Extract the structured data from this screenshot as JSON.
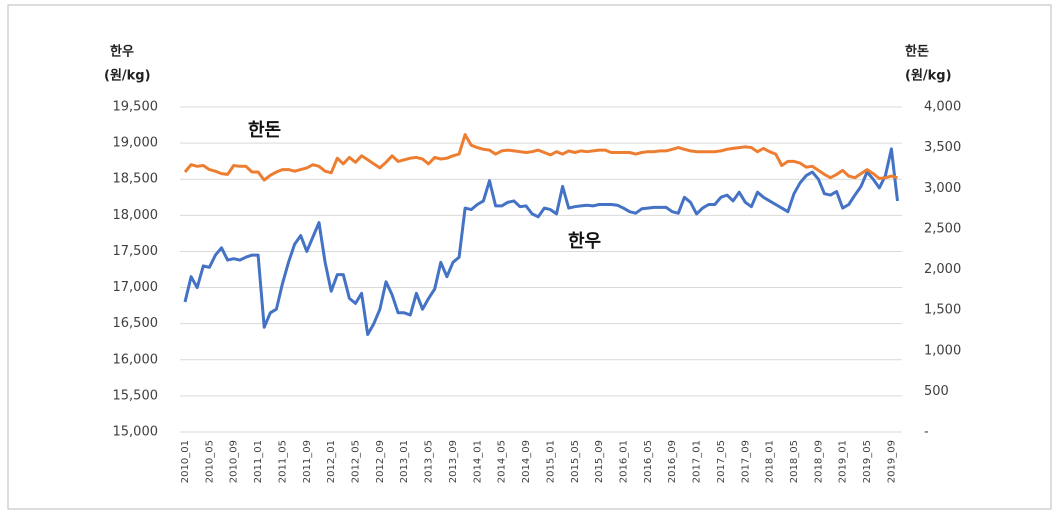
{
  "chart_data": {
    "type": "line",
    "y_label": "한우",
    "y_unit": "(원/kg)",
    "y2_label": "한돈",
    "y2_unit": "(원/kg)",
    "annotations": [
      "한돈",
      "한우"
    ],
    "categories": [
      "2010_01",
      null,
      null,
      null,
      "2010_05",
      null,
      null,
      null,
      "2010_09",
      null,
      null,
      null,
      "2011_01",
      null,
      null,
      null,
      "2011_05",
      null,
      null,
      null,
      "2011_09",
      null,
      null,
      null,
      "2012_01",
      null,
      null,
      null,
      "2012_05",
      null,
      null,
      null,
      "2012_09",
      null,
      null,
      null,
      "2013_01",
      null,
      null,
      null,
      "2013_05",
      null,
      null,
      null,
      "2013_09",
      null,
      null,
      null,
      "2014_01",
      null,
      null,
      null,
      "2014_05",
      null,
      null,
      null,
      "2014_09",
      null,
      null,
      null,
      "2015_01",
      null,
      null,
      null,
      "2015_05",
      null,
      null,
      null,
      "2015_09",
      null,
      null,
      null,
      "2016_01",
      null,
      null,
      null,
      "2016_05",
      null,
      null,
      null,
      "2016_09",
      null,
      null,
      null,
      "2017_01",
      null,
      null,
      null,
      "2017_05",
      null,
      null,
      null,
      "2017_09",
      null,
      null,
      null,
      "2018_01",
      null,
      null,
      null,
      "2018_05",
      null,
      null,
      null,
      "2018_09",
      null,
      null,
      null,
      "2019_01",
      null,
      null,
      null,
      "2019_05",
      null,
      null,
      null,
      "2019_09",
      null
    ],
    "series": [
      {
        "name": "한우",
        "color": "#4472c4",
        "axis": "y",
        "values": [
          16800,
          17150,
          17000,
          17300,
          17280,
          17450,
          17550,
          17380,
          17400,
          17380,
          17420,
          17450,
          17450,
          16450,
          16650,
          16700,
          17050,
          17350,
          17600,
          17720,
          17500,
          17700,
          17900,
          17350,
          16950,
          17180,
          17180,
          16850,
          16780,
          16920,
          16350,
          16500,
          16700,
          17080,
          16900,
          16650,
          16650,
          16620,
          16920,
          16700,
          16850,
          16980,
          17350,
          17150,
          17350,
          17420,
          18100,
          18080,
          18150,
          18200,
          18480,
          18130,
          18130,
          18180,
          18200,
          18120,
          18130,
          18020,
          17980,
          18100,
          18080,
          18020,
          18400,
          18100,
          18120,
          18130,
          18140,
          18130,
          18150,
          18150,
          18150,
          18140,
          18100,
          18050,
          18030,
          18090,
          18100,
          18110,
          18110,
          18110,
          18050,
          18030,
          18250,
          18180,
          18020,
          18100,
          18150,
          18150,
          18250,
          18280,
          18200,
          18320,
          18180,
          18120,
          18320,
          18250,
          18200,
          18150,
          18100,
          18050,
          18300,
          18450,
          18550,
          18600,
          18500,
          18300,
          18280,
          18330,
          18100,
          18150,
          18280,
          18400,
          18600,
          18500,
          18380,
          18550,
          18920,
          18200
        ]
      },
      {
        "name": "한돈",
        "color": "#ed7d31",
        "axis": "y2",
        "values": [
          3200,
          3290,
          3270,
          3280,
          3230,
          3210,
          3180,
          3170,
          3280,
          3270,
          3270,
          3200,
          3200,
          3100,
          3160,
          3200,
          3230,
          3230,
          3210,
          3230,
          3250,
          3290,
          3270,
          3210,
          3190,
          3370,
          3300,
          3380,
          3320,
          3400,
          3350,
          3300,
          3250,
          3320,
          3400,
          3330,
          3350,
          3370,
          3380,
          3360,
          3300,
          3380,
          3360,
          3370,
          3400,
          3420,
          3660,
          3530,
          3500,
          3480,
          3470,
          3420,
          3460,
          3470,
          3460,
          3450,
          3440,
          3450,
          3470,
          3440,
          3410,
          3450,
          3420,
          3460,
          3440,
          3460,
          3450,
          3460,
          3470,
          3470,
          3440,
          3440,
          3440,
          3440,
          3420,
          3440,
          3450,
          3450,
          3460,
          3460,
          3480,
          3500,
          3480,
          3460,
          3450,
          3450,
          3450,
          3450,
          3460,
          3480,
          3490,
          3500,
          3510,
          3500,
          3450,
          3490,
          3450,
          3420,
          3280,
          3330,
          3330,
          3310,
          3260,
          3270,
          3220,
          3170,
          3130,
          3170,
          3220,
          3150,
          3130,
          3180,
          3230,
          3180,
          3120,
          3130,
          3150,
          3130
        ]
      }
    ],
    "ylim": [
      15000,
      19500
    ],
    "yticks": [
      {
        "value": 15000,
        "label": "15,000"
      },
      {
        "value": 15500,
        "label": "15,500"
      },
      {
        "value": 16000,
        "label": "16,000"
      },
      {
        "value": 16500,
        "label": "16,500"
      },
      {
        "value": 17000,
        "label": "17,000"
      },
      {
        "value": 17500,
        "label": "17,500"
      },
      {
        "value": 18000,
        "label": "18,000"
      },
      {
        "value": 18500,
        "label": "18,500"
      },
      {
        "value": 19000,
        "label": "19,000"
      },
      {
        "value": 19500,
        "label": "19,500"
      }
    ],
    "y2lim": [
      0,
      4000
    ],
    "y2ticks": [
      {
        "value": 0,
        "label": "-"
      },
      500,
      {
        "value": 1000,
        "label": "1,000"
      },
      {
        "value": 1500,
        "label": "1,500"
      },
      {
        "value": 2000,
        "label": "2,000"
      },
      {
        "value": 2500,
        "label": "2,500"
      },
      {
        "value": 3000,
        "label": "3,000"
      },
      {
        "value": 3500,
        "label": "3,500"
      },
      {
        "value": 4000,
        "label": "4,000"
      }
    ],
    "grid": true
  }
}
